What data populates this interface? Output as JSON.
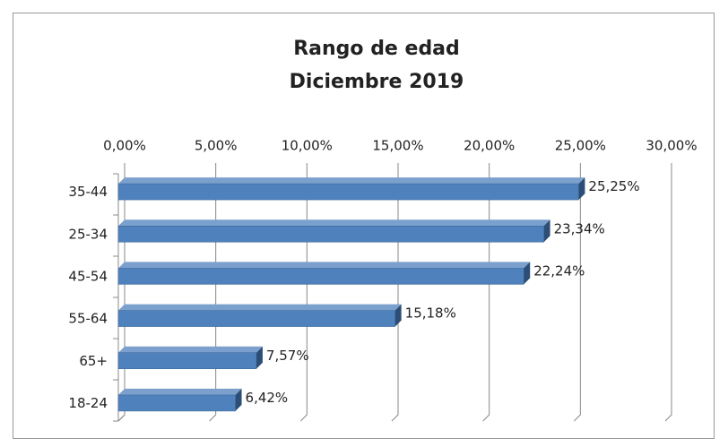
{
  "chart_data": {
    "type": "bar",
    "orientation": "horizontal",
    "title": [
      "Rango de edad",
      "Diciembre 2019"
    ],
    "categories": [
      "35-44",
      "25-34",
      "45-54",
      "55-64",
      "65+",
      "18-24"
    ],
    "values": [
      25.25,
      23.34,
      22.24,
      15.18,
      7.57,
      6.42
    ],
    "value_labels": [
      "25,25%",
      "23,34%",
      "22,24%",
      "15,18%",
      "7,57%",
      "6,42%"
    ],
    "color": "#4f81bd",
    "xlim": [
      0,
      30
    ],
    "xticks": [
      {
        "value": 0,
        "label": "0,00%"
      },
      {
        "value": 5,
        "label": "5,00%"
      },
      {
        "value": 10,
        "label": "10,00%"
      },
      {
        "value": 15,
        "label": "15,00%"
      },
      {
        "value": 20,
        "label": "20,00%"
      },
      {
        "value": 25,
        "label": "25,00%"
      },
      {
        "value": 30,
        "label": "30,00%"
      }
    ],
    "grid": true
  }
}
